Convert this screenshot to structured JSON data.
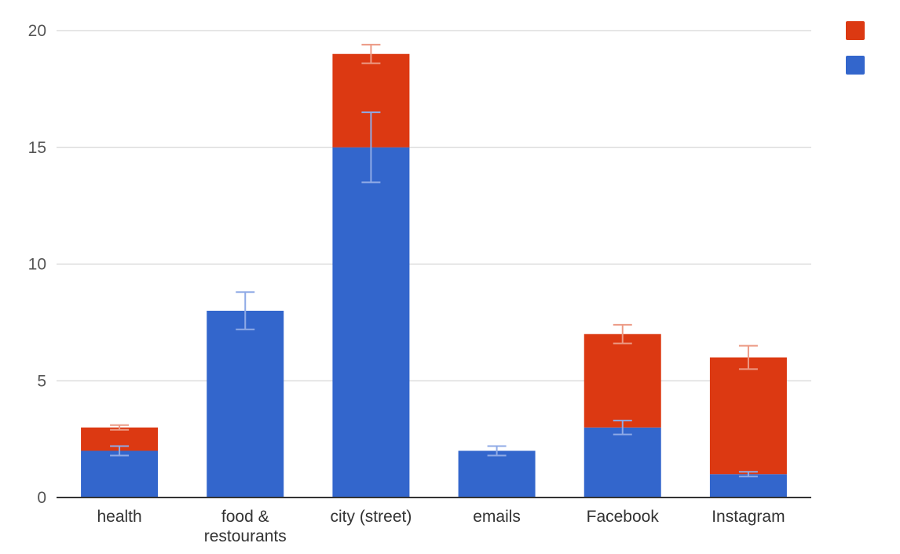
{
  "chart_data": {
    "type": "bar",
    "stacked": true,
    "categories": [
      "health",
      "food & restourants",
      "city (street)",
      "emails",
      "Facebook",
      "Instagram"
    ],
    "category_lines": [
      [
        "health"
      ],
      [
        "food &",
        "restourants"
      ],
      [
        "city (street)"
      ],
      [
        "emails"
      ],
      [
        "Facebook"
      ],
      [
        "Instagram"
      ]
    ],
    "series": [
      {
        "color": "#3366cc",
        "error_color": "#8faae6",
        "values": [
          2,
          8,
          15,
          2,
          3,
          1
        ],
        "error": [
          0.2,
          0.8,
          1.5,
          0.2,
          0.3,
          0.1
        ]
      },
      {
        "color": "#dc3912",
        "error_color": "#ec9a85",
        "values": [
          1,
          0,
          4,
          0,
          4,
          5
        ],
        "error": [
          0.1,
          0,
          0.4,
          0,
          0.4,
          0.5
        ]
      }
    ],
    "ylim": [
      0,
      20
    ],
    "yticks": [
      "0",
      "5",
      "10",
      "15",
      "20"
    ],
    "ytick_values": [
      0,
      5,
      10,
      15,
      20
    ],
    "grid": true,
    "legend_position": "top-right",
    "title": "",
    "xlabel": "",
    "ylabel": ""
  }
}
